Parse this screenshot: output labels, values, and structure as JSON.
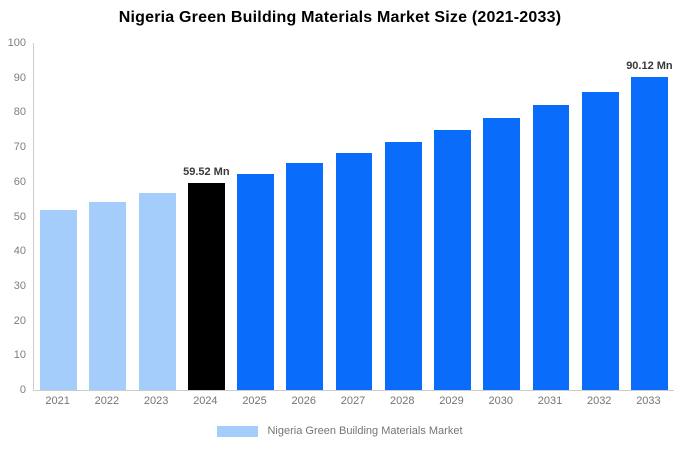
{
  "title": "Nigeria Green Building Materials Market Size (2021-2033)",
  "chart_data": {
    "type": "bar",
    "title": "Nigeria Green Building Materials Market Size (2021-2033)",
    "categories": [
      "2021",
      "2022",
      "2023",
      "2024",
      "2025",
      "2026",
      "2027",
      "2028",
      "2029",
      "2030",
      "2031",
      "2032",
      "2033"
    ],
    "values": [
      51.8,
      54.2,
      56.8,
      59.52,
      62.3,
      65.3,
      68.4,
      71.5,
      74.9,
      78.4,
      82.1,
      86.0,
      90.12
    ],
    "unit": "Mn",
    "bar_colors": [
      "#A4CDFB",
      "#A4CDFB",
      "#A4CDFB",
      "#000000",
      "#0A6CFA",
      "#0A6CFA",
      "#0A6CFA",
      "#0A6CFA",
      "#0A6CFA",
      "#0A6CFA",
      "#0A6CFA",
      "#0A6CFA",
      "#0A6CFA"
    ],
    "annotations": [
      {
        "category": "2024",
        "label": "59.52 Mn"
      },
      {
        "category": "2033",
        "label": "90.12 Mn"
      }
    ],
    "xlabel": "",
    "ylabel": "",
    "ylim": [
      0,
      100
    ],
    "yticks": [
      0,
      10,
      20,
      30,
      40,
      50,
      60,
      70,
      80,
      90,
      100
    ],
    "grid": false,
    "legend": {
      "position": "bottom",
      "entries": [
        {
          "label": "Nigeria Green Building Materials Market",
          "color": "#A4CDFB"
        }
      ]
    }
  },
  "colors": {
    "background": "#FFFFFF",
    "bar_historic": "#A4CDFB",
    "bar_base_year": "#000000",
    "bar_forecast": "#0A6CFA",
    "axis_line": "#CCCCCC",
    "tick_text": "#7E7E7E",
    "legend_text": "#757575",
    "annotation_text": "#3A3A3A",
    "title_text": "#000000"
  }
}
